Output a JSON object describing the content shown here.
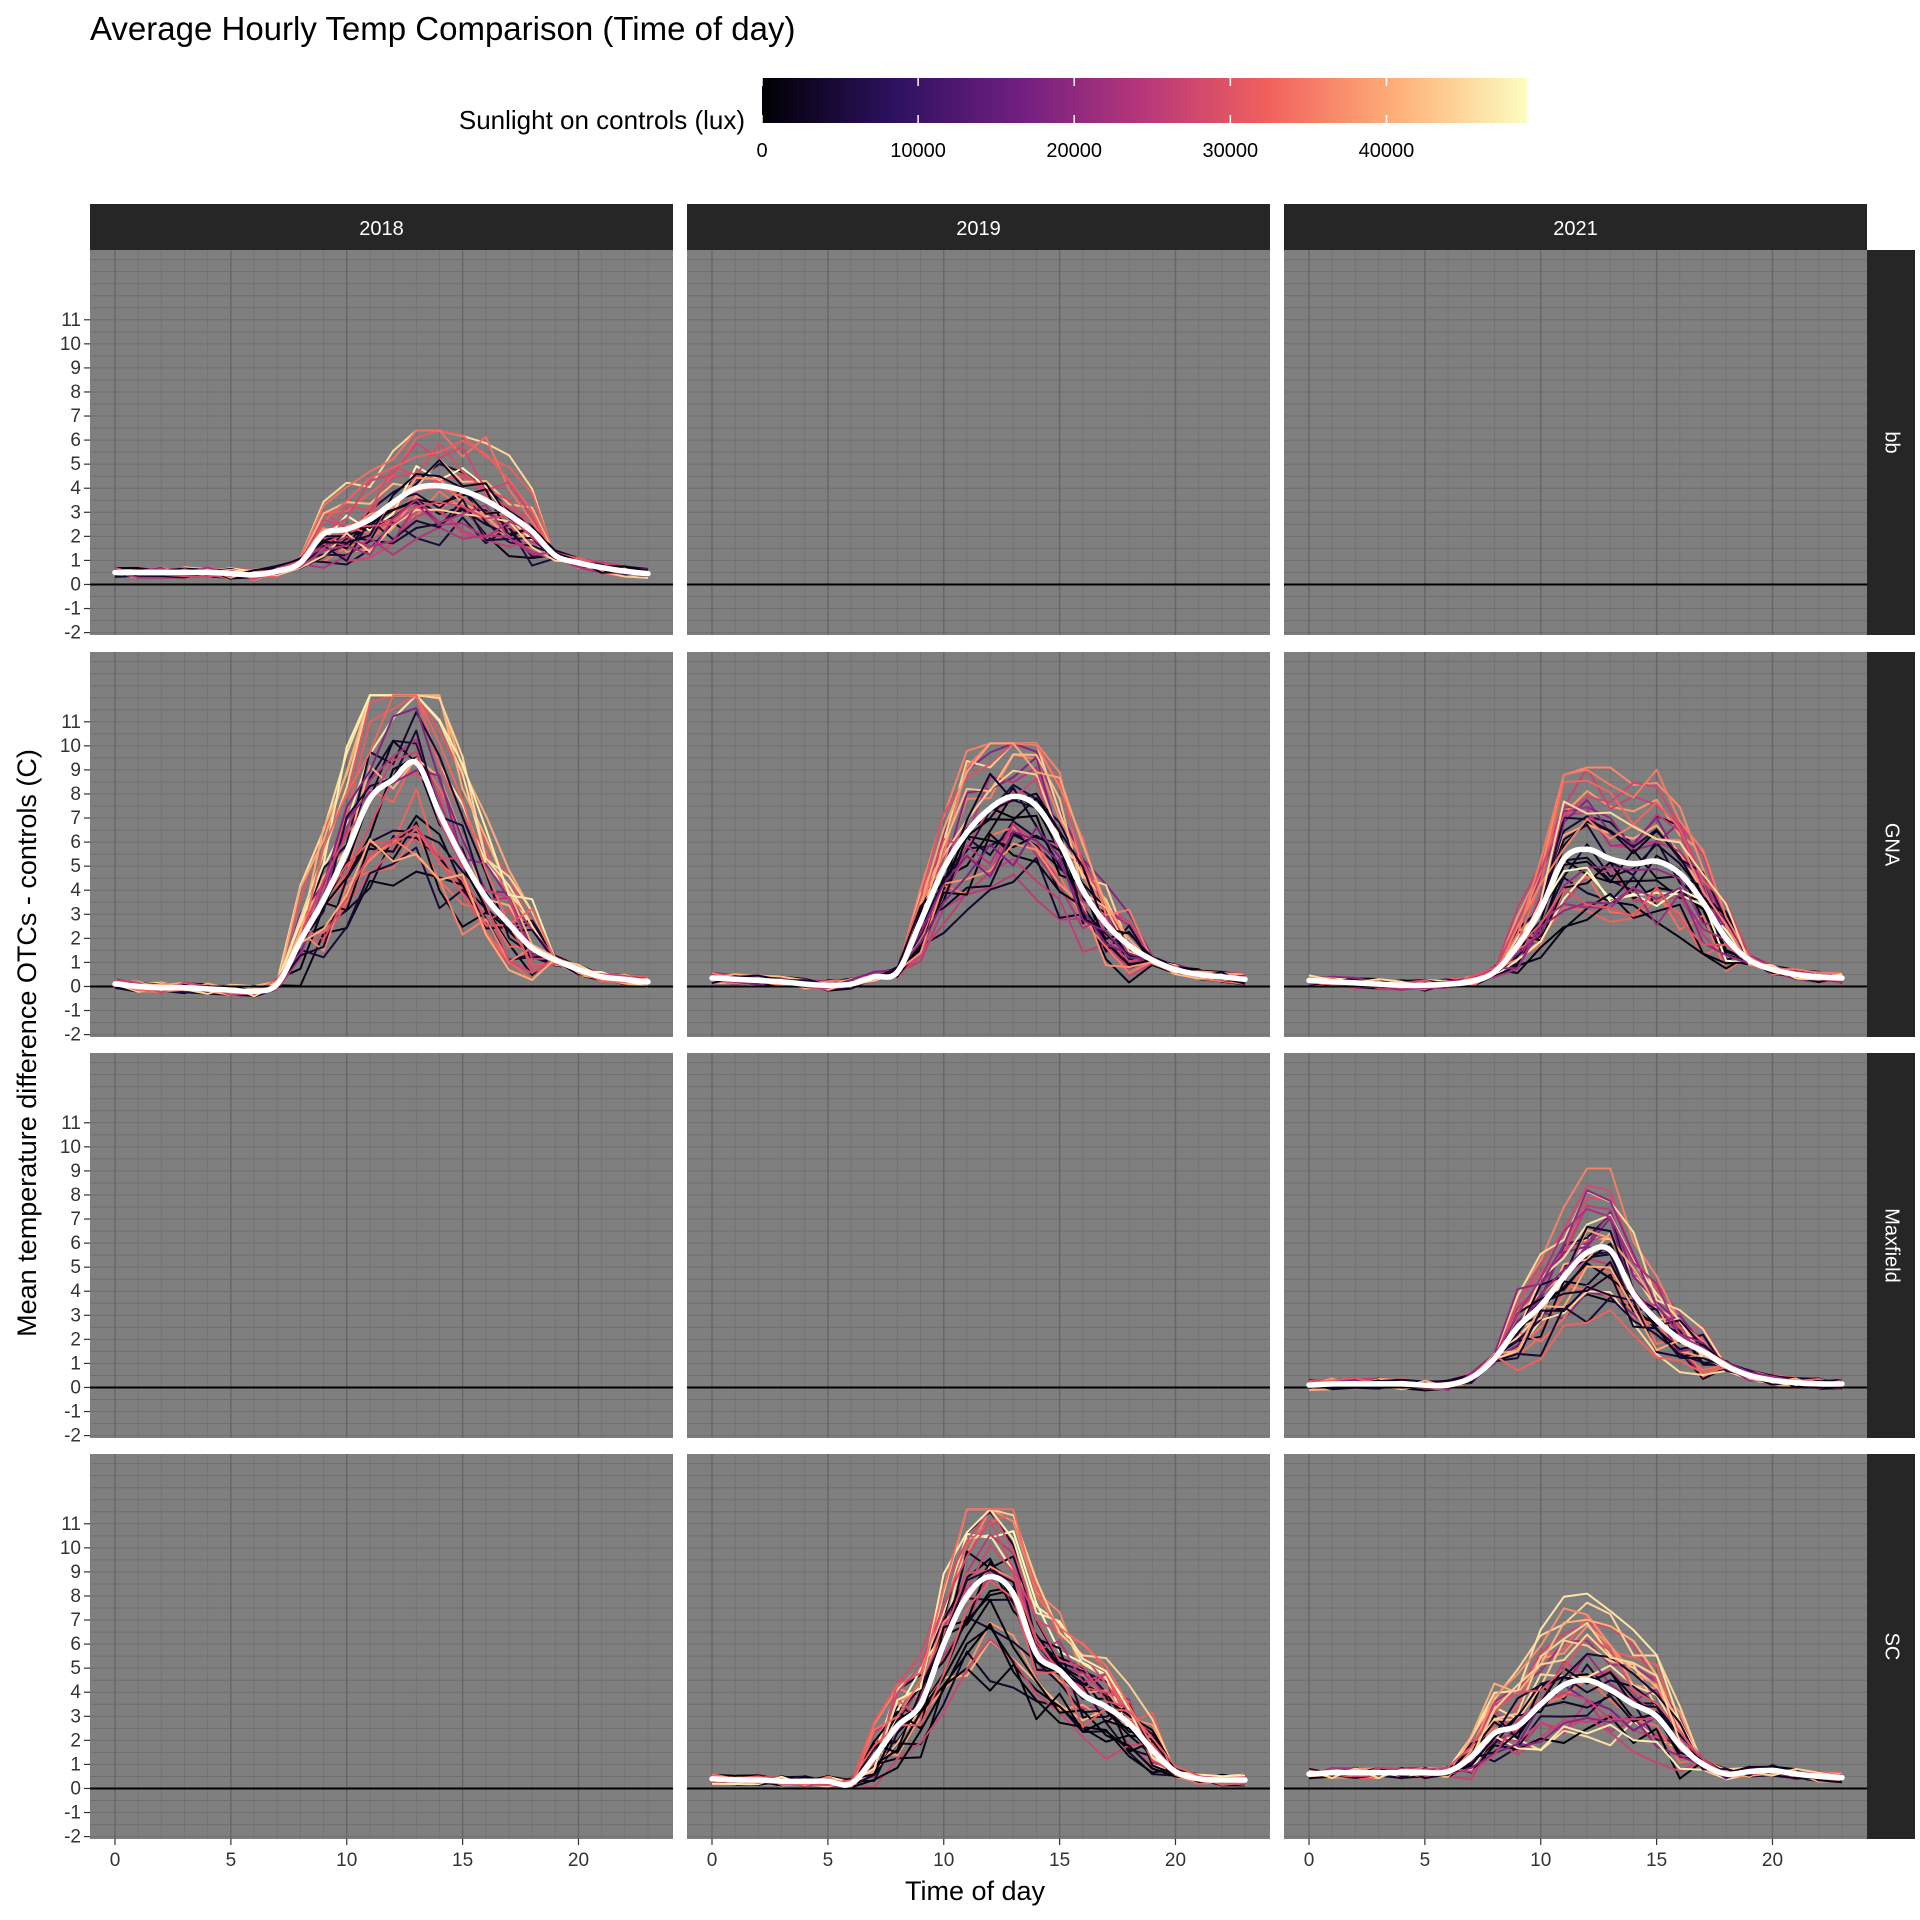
{
  "chart_data": {
    "type": "line",
    "title": "Average Hourly Temp Comparison (Time of day)",
    "xlabel": "Time of day",
    "ylabel": "Mean temperature difference OTCs - controls (C)",
    "xlim": [
      0,
      23
    ],
    "ylim": [
      -2,
      12
    ],
    "x_ticks": [
      "0",
      "5",
      "10",
      "15",
      "20"
    ],
    "y_ticks": [
      "-2",
      "-1",
      "0",
      "1",
      "2",
      "3",
      "4",
      "5",
      "6",
      "7",
      "8",
      "9",
      "10",
      "11"
    ],
    "legend": {
      "title": "Sunlight on controls (lux)",
      "position": "top",
      "ticks": [
        "0",
        "10000",
        "20000",
        "30000",
        "40000"
      ],
      "range": [
        0,
        49000
      ],
      "palette": [
        "#000004",
        "#2c115f",
        "#721f81",
        "#b73779",
        "#f1605d",
        "#feb078",
        "#fcfdbf"
      ]
    },
    "facet_columns": [
      "2018",
      "2019",
      "2021"
    ],
    "facet_rows": [
      "bb",
      "GNA",
      "Maxfield",
      "SC"
    ],
    "reference_line_y": 0,
    "smooth_color": "#ffffff",
    "panel_background": "#7f7f7f",
    "panels": [
      {
        "row": "bb",
        "col": "2018",
        "has_data": true,
        "smooth": [
          0.5,
          0.5,
          0.5,
          0.5,
          0.5,
          0.45,
          0.4,
          0.55,
          0.9,
          2.1,
          2.3,
          2.7,
          3.4,
          4.0,
          4.1,
          3.9,
          3.5,
          2.9,
          2.2,
          1.2,
          0.9,
          0.7,
          0.55,
          0.45
        ],
        "peak": 4.8,
        "spread": 3.2
      },
      {
        "row": "bb",
        "col": "2019",
        "has_data": false
      },
      {
        "row": "bb",
        "col": "2021",
        "has_data": false
      },
      {
        "row": "GNA",
        "col": "2018",
        "has_data": true,
        "smooth": [
          0.1,
          0.0,
          -0.05,
          -0.05,
          -0.1,
          -0.15,
          -0.2,
          0.1,
          1.9,
          3.6,
          5.6,
          7.8,
          8.6,
          9.3,
          7.2,
          5.3,
          3.7,
          2.6,
          1.6,
          1.1,
          0.7,
          0.4,
          0.3,
          0.2
        ],
        "peak": 10.5,
        "spread": 4.5
      },
      {
        "row": "GNA",
        "col": "2019",
        "has_data": true,
        "smooth": [
          0.35,
          0.3,
          0.25,
          0.2,
          0.1,
          0.05,
          0.1,
          0.4,
          0.6,
          2.7,
          4.9,
          6.4,
          7.4,
          7.9,
          7.5,
          6.0,
          4.0,
          2.6,
          1.7,
          1.1,
          0.7,
          0.5,
          0.4,
          0.3
        ],
        "peak": 8.5,
        "spread": 4.0
      },
      {
        "row": "GNA",
        "col": "2021",
        "has_data": true,
        "smooth": [
          0.25,
          0.2,
          0.15,
          0.1,
          0.05,
          0.05,
          0.1,
          0.2,
          0.6,
          1.7,
          3.2,
          5.3,
          5.7,
          5.3,
          5.1,
          5.2,
          4.7,
          3.5,
          2.0,
          1.1,
          0.7,
          0.5,
          0.4,
          0.35
        ],
        "peak": 7.5,
        "spread": 3.5
      },
      {
        "row": "Maxfield",
        "col": "2018",
        "has_data": false
      },
      {
        "row": "Maxfield",
        "col": "2019",
        "has_data": false
      },
      {
        "row": "Maxfield",
        "col": "2021",
        "has_data": true,
        "smooth": [
          0.1,
          0.15,
          0.15,
          0.15,
          0.15,
          0.1,
          0.1,
          0.4,
          1.2,
          2.5,
          3.4,
          4.6,
          5.6,
          5.7,
          3.9,
          2.8,
          2.0,
          1.5,
          0.9,
          0.5,
          0.3,
          0.2,
          0.15,
          0.15
        ],
        "peak": 7.5,
        "spread": 3.0
      },
      {
        "row": "SC",
        "col": "2018",
        "has_data": false
      },
      {
        "row": "SC",
        "col": "2019",
        "has_data": true,
        "smooth": [
          0.4,
          0.35,
          0.35,
          0.3,
          0.3,
          0.3,
          0.2,
          1.3,
          2.6,
          3.5,
          6.0,
          8.0,
          8.8,
          8.1,
          5.6,
          4.9,
          3.9,
          3.4,
          2.7,
          1.6,
          0.7,
          0.4,
          0.35,
          0.35
        ],
        "peak": 10.0,
        "spread": 4.0
      },
      {
        "row": "SC",
        "col": "2021",
        "has_data": true,
        "smooth": [
          0.6,
          0.65,
          0.65,
          0.65,
          0.65,
          0.65,
          0.7,
          1.3,
          2.3,
          2.6,
          3.5,
          4.3,
          4.5,
          4.1,
          3.5,
          3.0,
          1.8,
          1.0,
          0.6,
          0.7,
          0.75,
          0.6,
          0.5,
          0.45
        ],
        "peak": 6.5,
        "spread": 3.0
      }
    ]
  }
}
